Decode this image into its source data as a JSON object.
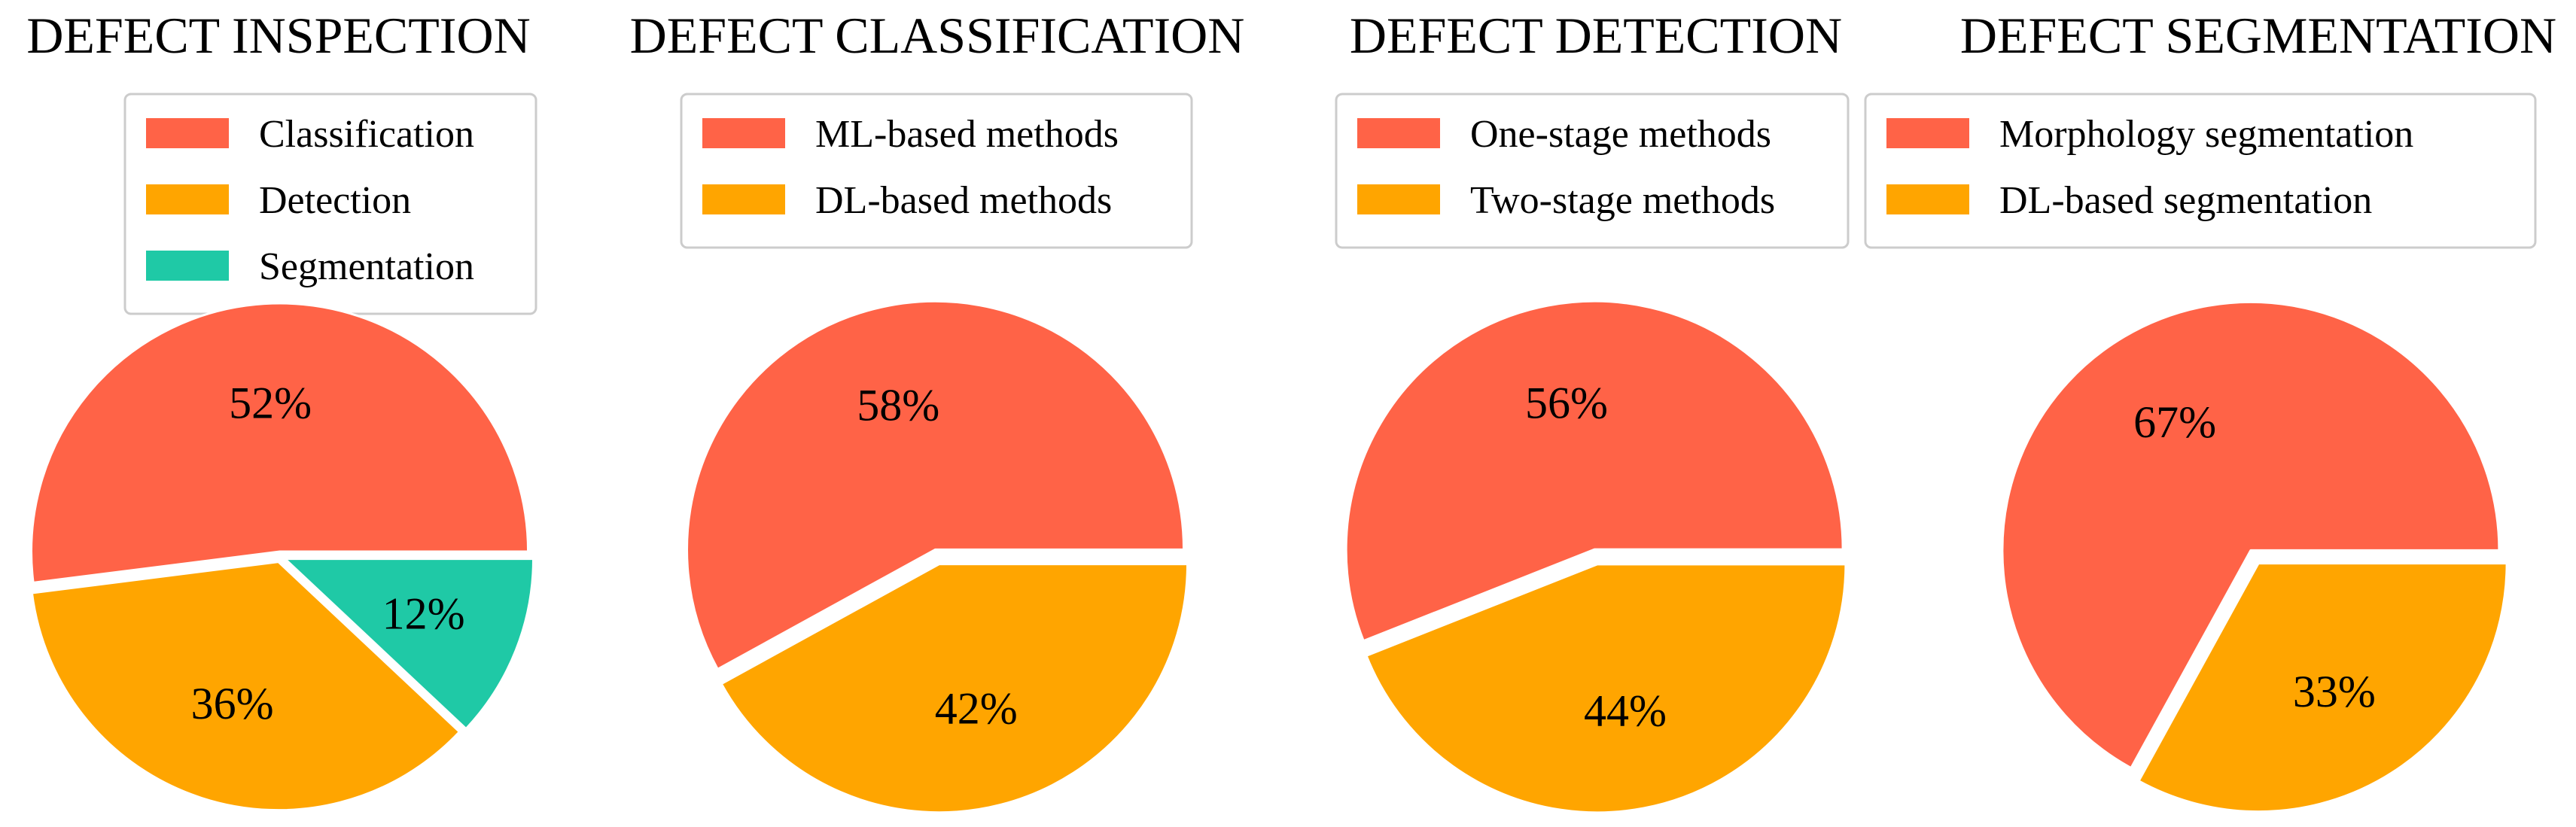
{
  "colors": {
    "background": "#ffffff",
    "legend_border": "#cccccc",
    "slice_border": "#ffffff",
    "text": "#000000",
    "red": "#FF6347",
    "orange": "#FFA500",
    "teal": "#1FC9A6"
  },
  "chart_data": [
    {
      "type": "pie",
      "title": "DEFECT INSPECTION",
      "legend_position": "top",
      "start_angle_deg": 0,
      "series": [
        {
          "name": "Classification",
          "value": 52,
          "label": "52%",
          "color": "#FF6347"
        },
        {
          "name": "Detection",
          "value": 36,
          "label": "36%",
          "color": "#FFA500"
        },
        {
          "name": "Segmentation",
          "value": 12,
          "label": "12%",
          "color": "#1FC9A6"
        }
      ]
    },
    {
      "type": "pie",
      "title": "DEFECT CLASSIFICATION",
      "legend_position": "top",
      "start_angle_deg": 0,
      "series": [
        {
          "name": "ML-based methods",
          "value": 58,
          "label": "58%",
          "color": "#FF6347"
        },
        {
          "name": "DL-based methods",
          "value": 42,
          "label": "42%",
          "color": "#FFA500"
        }
      ]
    },
    {
      "type": "pie",
      "title": "DEFECT DETECTION",
      "legend_position": "top",
      "start_angle_deg": 0,
      "series": [
        {
          "name": "One-stage methods",
          "value": 56,
          "label": "56%",
          "color": "#FF6347"
        },
        {
          "name": "Two-stage methods",
          "value": 44,
          "label": "44%",
          "color": "#FFA500"
        }
      ]
    },
    {
      "type": "pie",
      "title": "DEFECT SEGMENTATION",
      "legend_position": "top",
      "start_angle_deg": 0,
      "series": [
        {
          "name": "Morphology segmentation",
          "value": 67,
          "label": "67%",
          "color": "#FF6347"
        },
        {
          "name": "DL-based segmentation",
          "value": 33,
          "label": "33%",
          "color": "#FFA500"
        }
      ]
    }
  ]
}
